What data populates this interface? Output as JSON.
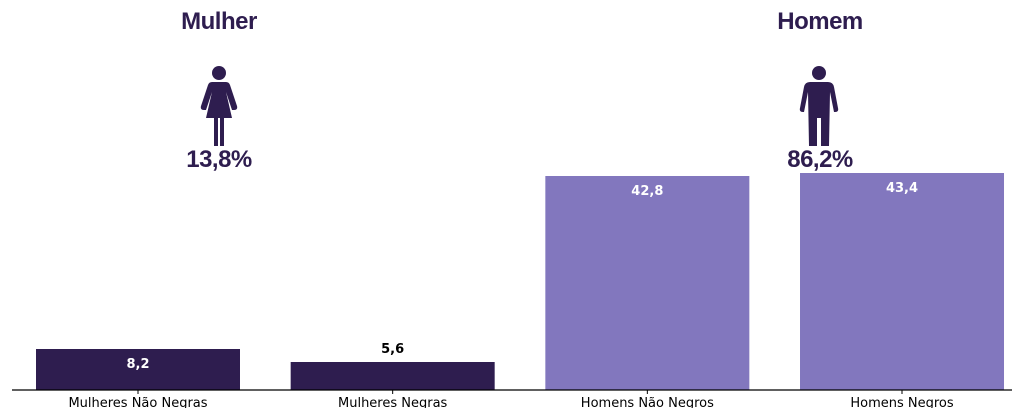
{
  "colors": {
    "dark": "#2e1d4f",
    "light": "#8277be",
    "axis": "#000000"
  },
  "header": {
    "female": {
      "title": "Mulher",
      "pct": "13,8%",
      "icon": "female-person-icon"
    },
    "male": {
      "title": "Homem",
      "pct": "86,2%",
      "icon": "male-person-icon"
    }
  },
  "chart_data": {
    "type": "bar",
    "categories": [
      "Mulheres Não Negras",
      "Mulheres Negras",
      "Homens Não Negros",
      "Homens Negros"
    ],
    "values": [
      8.2,
      5.6,
      42.8,
      43.4
    ],
    "value_labels": [
      "8,2",
      "5,6",
      "42,8",
      "43,4"
    ],
    "bar_colors": [
      "#2e1d4f",
      "#2e1d4f",
      "#8277be",
      "#8277be"
    ],
    "label_inside": [
      true,
      false,
      true,
      true
    ],
    "title": "",
    "xlabel": "",
    "ylabel": "",
    "ylim": [
      0,
      48
    ],
    "grid": false
  }
}
